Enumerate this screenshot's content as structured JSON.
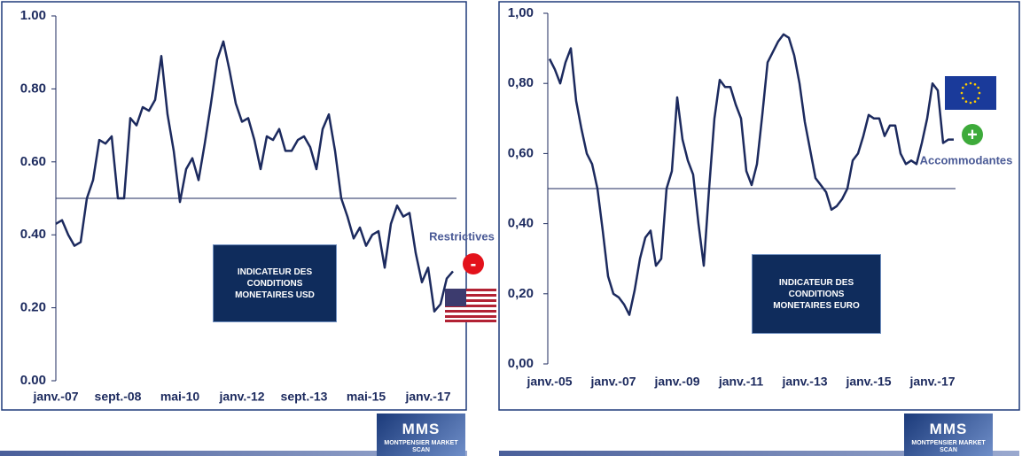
{
  "chart_data": [
    {
      "type": "line",
      "title": "INDICATEUR DES CONDITIONS MONETAIRES USD",
      "categories": [
        "janv.-07",
        null,
        null,
        null,
        null,
        null,
        null,
        null,
        null,
        null,
        "sept.-08",
        null,
        null,
        null,
        null,
        null,
        null,
        null,
        null,
        null,
        "mai-10",
        null,
        null,
        null,
        null,
        null,
        null,
        null,
        null,
        null,
        "janv.-12",
        null,
        null,
        null,
        null,
        null,
        null,
        null,
        null,
        null,
        "sept.-13",
        null,
        null,
        null,
        null,
        null,
        null,
        null,
        null,
        null,
        "mai-15",
        null,
        null,
        null,
        null,
        null,
        null,
        null,
        null,
        null,
        "janv.-17",
        null,
        null,
        null,
        null
      ],
      "values": [
        0.43,
        0.44,
        0.4,
        0.37,
        0.38,
        0.5,
        0.55,
        0.66,
        0.65,
        0.67,
        0.5,
        0.5,
        0.72,
        0.7,
        0.75,
        0.74,
        0.77,
        0.89,
        0.73,
        0.63,
        0.49,
        0.58,
        0.61,
        0.55,
        0.65,
        0.76,
        0.88,
        0.93,
        0.85,
        0.76,
        0.71,
        0.72,
        0.66,
        0.58,
        0.67,
        0.66,
        0.69,
        0.63,
        0.63,
        0.66,
        0.67,
        0.64,
        0.58,
        0.69,
        0.73,
        0.63,
        0.5,
        0.45,
        0.39,
        0.42,
        0.37,
        0.4,
        0.41,
        0.31,
        0.43,
        0.48,
        0.45,
        0.46,
        0.35,
        0.27,
        0.31,
        0.19,
        0.21,
        0.28,
        0.3
      ],
      "color": "#1c2a5e",
      "ylim": [
        0,
        1
      ],
      "yticks": [
        {
          "value": 0,
          "label": "0.00"
        },
        {
          "value": 0.2,
          "label": "0.20"
        },
        {
          "value": 0.4,
          "label": "0.40"
        },
        {
          "value": 0.6,
          "label": "0.60"
        },
        {
          "value": 0.8,
          "label": "0.80"
        },
        {
          "value": 1,
          "label": "1.00"
        }
      ],
      "reference_line": 0.5,
      "annotation": {
        "text": "Restrictives",
        "symbol": "-",
        "symbol_color": "#e3121b"
      }
    },
    {
      "type": "line",
      "title": "INDICATEUR DES CONDITIONS MONETAIRES EURO",
      "categories": [
        "janv.-05",
        null,
        null,
        null,
        null,
        null,
        null,
        null,
        null,
        null,
        null,
        null,
        "janv.-07",
        null,
        null,
        null,
        null,
        null,
        null,
        null,
        null,
        null,
        null,
        null,
        "janv.-09",
        null,
        null,
        null,
        null,
        null,
        null,
        null,
        null,
        null,
        null,
        null,
        "janv.-11",
        null,
        null,
        null,
        null,
        null,
        null,
        null,
        null,
        null,
        null,
        null,
        "janv.-13",
        null,
        null,
        null,
        null,
        null,
        null,
        null,
        null,
        null,
        null,
        null,
        "janv.-15",
        null,
        null,
        null,
        null,
        null,
        null,
        null,
        null,
        null,
        null,
        null,
        "janv.-17",
        null,
        null,
        null,
        null
      ],
      "values": [
        0.87,
        0.84,
        0.8,
        0.86,
        0.9,
        0.75,
        0.67,
        0.6,
        0.57,
        0.5,
        0.38,
        0.25,
        0.2,
        0.19,
        0.17,
        0.14,
        0.21,
        0.3,
        0.36,
        0.38,
        0.28,
        0.3,
        0.5,
        0.55,
        0.76,
        0.64,
        0.58,
        0.54,
        0.4,
        0.28,
        0.5,
        0.7,
        0.81,
        0.79,
        0.79,
        0.74,
        0.7,
        0.55,
        0.51,
        0.57,
        0.71,
        0.86,
        0.89,
        0.92,
        0.94,
        0.93,
        0.88,
        0.8,
        0.69,
        0.61,
        0.53,
        0.51,
        0.49,
        0.44,
        0.45,
        0.47,
        0.5,
        0.58,
        0.6,
        0.65,
        0.71,
        0.7,
        0.7,
        0.65,
        0.68,
        0.68,
        0.6,
        0.57,
        0.58,
        0.57,
        0.63,
        0.7,
        0.8,
        0.78,
        0.63,
        0.64,
        0.64
      ],
      "color": "#1c2a5e",
      "ylim": [
        0,
        1
      ],
      "yticks": [
        {
          "value": 0,
          "label": "0,00"
        },
        {
          "value": 0.2,
          "label": "0,20"
        },
        {
          "value": 0.4,
          "label": "0,40"
        },
        {
          "value": 0.6,
          "label": "0,60"
        },
        {
          "value": 0.8,
          "label": "0,80"
        },
        {
          "value": 1,
          "label": "1,00"
        }
      ],
      "reference_line": 0.5,
      "annotation": {
        "text": "Accommodantes",
        "symbol": "+",
        "symbol_color": "#3daa3a"
      }
    }
  ],
  "logo": {
    "title": "MMS",
    "subtitle": "MONTPENSIER MARKET SCAN"
  }
}
